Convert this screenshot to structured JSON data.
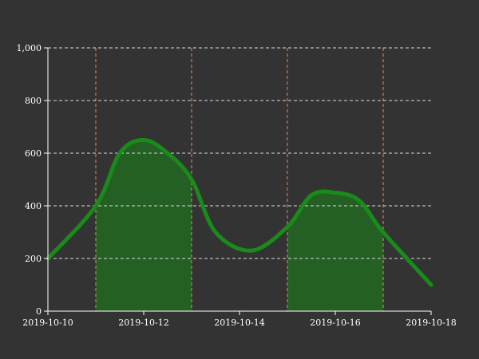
{
  "chart_data": {
    "type": "line",
    "title": "",
    "xlabel": "",
    "ylabel": "",
    "x_ticks": [
      "2019-10-10",
      "2019-10-12",
      "2019-10-14",
      "2019-10-16",
      "2019-10-18"
    ],
    "x_range": [
      "2019-10-10",
      "2019-10-18"
    ],
    "y_ticks": [
      "0",
      "200",
      "400",
      "600",
      "800",
      "1,000"
    ],
    "ylim": [
      0,
      1000
    ],
    "grid": true,
    "vertical_gridlines": [
      "2019-10-11",
      "2019-10-13",
      "2019-10-15",
      "2019-10-17"
    ],
    "series": [
      {
        "points": [
          {
            "x": "2019-10-10",
            "y": 200
          },
          {
            "x": "2019-10-11",
            "y": 400
          },
          {
            "x": "2019-10-11 12:00",
            "y": 600
          },
          {
            "x": "2019-10-12",
            "y": 650
          },
          {
            "x": "2019-10-12 12:00",
            "y": 600
          },
          {
            "x": "2019-10-13",
            "y": 500
          },
          {
            "x": "2019-10-13 12:00",
            "y": 300
          },
          {
            "x": "2019-10-14 06:00",
            "y": 230
          },
          {
            "x": "2019-10-15",
            "y": 320
          },
          {
            "x": "2019-10-15 12:00",
            "y": 440
          },
          {
            "x": "2019-10-16",
            "y": 450
          },
          {
            "x": "2019-10-16 12:00",
            "y": 420
          },
          {
            "x": "2019-10-17",
            "y": 300
          },
          {
            "x": "2019-10-18",
            "y": 100
          }
        ]
      }
    ],
    "shaded_ranges": [
      {
        "from": "2019-10-11",
        "to": "2019-10-13"
      },
      {
        "from": "2019-10-15",
        "to": "2019-10-17"
      }
    ],
    "colors": {
      "background": "#333333",
      "line": "#1a8a1a",
      "fill": "#246024",
      "horizontal_grid": "#d8d8d8",
      "vertical_grid": "#e08a5c",
      "text": "#ffffff"
    }
  }
}
